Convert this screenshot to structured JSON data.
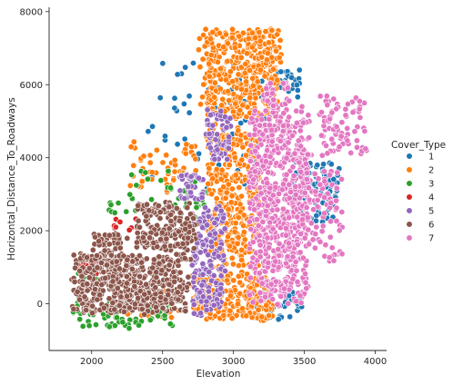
{
  "chart_data": {
    "type": "scatter",
    "xlabel": "Elevation",
    "ylabel": "Horizontal_Distance_To_Roadways",
    "xlim": [
      1700,
      4080
    ],
    "ylim": [
      -1280,
      8120
    ],
    "xticks": [
      2000,
      2500,
      3000,
      3500,
      4000
    ],
    "yticks": [
      0,
      2000,
      4000,
      6000,
      8000
    ],
    "legend": {
      "title": "Cover_Type",
      "placement": "right",
      "items": [
        {
          "label": "1",
          "color": "#1f77b4"
        },
        {
          "label": "2",
          "color": "#ff7f0e"
        },
        {
          "label": "3",
          "color": "#2ca02c"
        },
        {
          "label": "4",
          "color": "#d62728"
        },
        {
          "label": "5",
          "color": "#9467bd"
        },
        {
          "label": "6",
          "color": "#8c564b"
        },
        {
          "label": "7",
          "color": "#e377c2"
        }
      ]
    },
    "series": [
      {
        "name": "1",
        "color": "#1f77b4",
        "regions": [
          {
            "x": [
              2300,
              3550
            ],
            "y": [
              3000,
              6800
            ],
            "n": 60
          },
          {
            "x": [
              3400,
              3750
            ],
            "y": [
              2200,
              4000
            ],
            "n": 90
          },
          {
            "x": [
              3150,
              3500
            ],
            "y": [
              -500,
              400
            ],
            "n": 40
          },
          {
            "x": [
              3300,
              3480
            ],
            "y": [
              5800,
              6500
            ],
            "n": 25
          }
        ]
      },
      {
        "name": "2",
        "color": "#ff7f0e",
        "regions": [
          {
            "x": [
              2750,
              3350
            ],
            "y": [
              5000,
              7600
            ],
            "n": 420
          },
          {
            "x": [
              2800,
              3200
            ],
            "y": [
              800,
              5000
            ],
            "n": 380
          },
          {
            "x": [
              2700,
              3300
            ],
            "y": [
              -500,
              900
            ],
            "n": 220
          },
          {
            "x": [
              2250,
              2800
            ],
            "y": [
              3000,
              4500
            ],
            "n": 60
          },
          {
            "x": [
              2250,
              2650
            ],
            "y": [
              -400,
              400
            ],
            "n": 40
          }
        ]
      },
      {
        "name": "3",
        "color": "#2ca02c",
        "regions": [
          {
            "x": [
              1850,
              2600
            ],
            "y": [
              -700,
              100
            ],
            "n": 70
          },
          {
            "x": [
              2100,
              2850
            ],
            "y": [
              2200,
              3800
            ],
            "n": 40
          },
          {
            "x": [
              1850,
              2050
            ],
            "y": [
              400,
              1200
            ],
            "n": 20
          }
        ]
      },
      {
        "name": "4",
        "color": "#d62728",
        "regions": [
          {
            "x": [
              1900,
              2050
            ],
            "y": [
              800,
              1300
            ],
            "n": 30
          },
          {
            "x": [
              2150,
              2350
            ],
            "y": [
              2000,
              2400
            ],
            "n": 10
          }
        ]
      },
      {
        "name": "5",
        "color": "#9467bd",
        "regions": [
          {
            "x": [
              2700,
              2950
            ],
            "y": [
              -400,
              2800
            ],
            "n": 180
          },
          {
            "x": [
              2800,
              3000
            ],
            "y": [
              3800,
              5400
            ],
            "n": 60
          },
          {
            "x": [
              2600,
              2800
            ],
            "y": [
              2800,
              3600
            ],
            "n": 40
          }
        ]
      },
      {
        "name": "6",
        "color": "#8c564b",
        "regions": [
          {
            "x": [
              1850,
              2700
            ],
            "y": [
              -300,
              1400
            ],
            "n": 520
          },
          {
            "x": [
              2300,
              2750
            ],
            "y": [
              1400,
              2800
            ],
            "n": 200
          },
          {
            "x": [
              2000,
              2300
            ],
            "y": [
              1000,
              2000
            ],
            "n": 60
          }
        ]
      },
      {
        "name": "7",
        "color": "#e377c2",
        "regions": [
          {
            "x": [
              3100,
              3550
            ],
            "y": [
              -100,
              5500
            ],
            "n": 700
          },
          {
            "x": [
              3350,
              3800
            ],
            "y": [
              1000,
              3800
            ],
            "n": 120
          },
          {
            "x": [
              3600,
              3950
            ],
            "y": [
              4000,
              5700
            ],
            "n": 80
          },
          {
            "x": [
              3200,
              3400
            ],
            "y": [
              5300,
              6100
            ],
            "n": 30
          }
        ]
      }
    ]
  }
}
